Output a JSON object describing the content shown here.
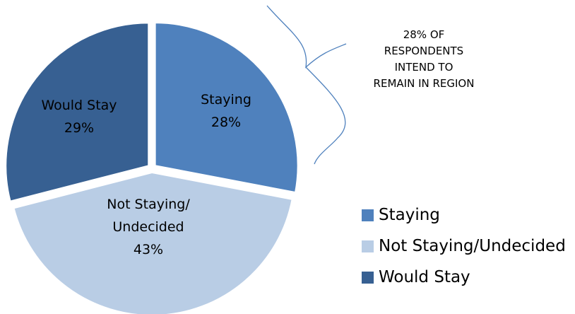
{
  "chart_data": {
    "type": "pie",
    "slices": [
      {
        "name": "Staying",
        "label_lines": [
          "Staying",
          "28%"
        ],
        "value": 28,
        "color": "#4F81BD"
      },
      {
        "name": "Not Staying/Undecided",
        "label_lines": [
          "Not Staying/",
          "Undecided",
          "43%"
        ],
        "value": 43,
        "color": "#B9CDE5"
      },
      {
        "name": "Would Stay",
        "label_lines": [
          "Would Stay",
          "29%"
        ],
        "value": 29,
        "color": "#376092"
      }
    ],
    "exploded": true,
    "annotation": {
      "lines": [
        "28% OF",
        "RESPONDENTS",
        "INTEND TO",
        "REMAIN IN REGION"
      ],
      "bracket_color": "#4F81BD"
    },
    "legend": {
      "position": "bottom-right",
      "items": [
        {
          "label": "Staying",
          "color": "#4F81BD"
        },
        {
          "label": "Not Staying/Undecided",
          "color": "#B9CDE5"
        },
        {
          "label": "Would Stay",
          "color": "#376092"
        }
      ]
    }
  }
}
